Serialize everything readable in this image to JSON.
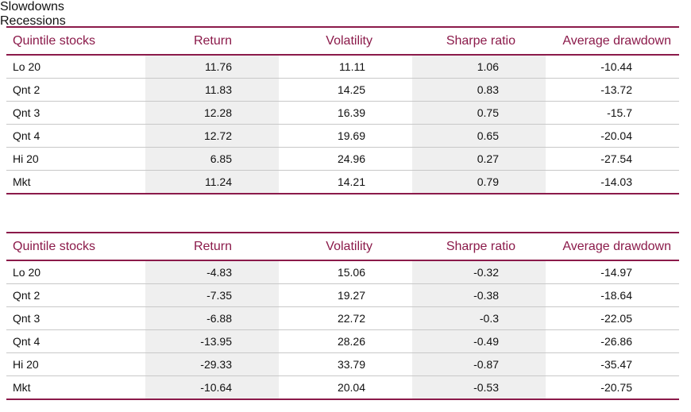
{
  "sections": [
    {
      "title": "Slowdowns",
      "header": [
        "Quintile stocks",
        "Return",
        "Volatility",
        "Sharpe ratio",
        "Average drawdown"
      ],
      "rows": [
        [
          "Lo 20",
          11.76,
          11.11,
          1.06,
          -10.44
        ],
        [
          "Qnt 2",
          11.83,
          14.25,
          0.83,
          -13.72
        ],
        [
          "Qnt 3",
          12.28,
          16.39,
          0.75,
          -15.7
        ],
        [
          "Qnt 4",
          12.72,
          19.69,
          0.65,
          -20.04
        ],
        [
          "Hi 20",
          6.85,
          24.96,
          0.27,
          -27.54
        ],
        [
          "Mkt",
          11.24,
          14.21,
          0.79,
          -14.03
        ]
      ]
    },
    {
      "title": "Recessions",
      "header": [
        "Quintile stocks",
        "Return",
        "Volatility",
        "Sharpe ratio",
        "Average drawdown"
      ],
      "rows": [
        [
          "Lo 20",
          -4.83,
          15.06,
          -0.32,
          -14.97
        ],
        [
          "Qnt 2",
          -7.35,
          19.27,
          -0.38,
          -18.64
        ],
        [
          "Qnt 3",
          -6.88,
          22.72,
          -0.3,
          -22.05
        ],
        [
          "Qnt 4",
          -13.95,
          28.26,
          -0.49,
          -26.86
        ],
        [
          "Hi 20",
          -29.33,
          33.79,
          -0.87,
          -35.47
        ],
        [
          "Mkt",
          -10.64,
          20.04,
          -0.53,
          -20.75
        ]
      ]
    }
  ]
}
